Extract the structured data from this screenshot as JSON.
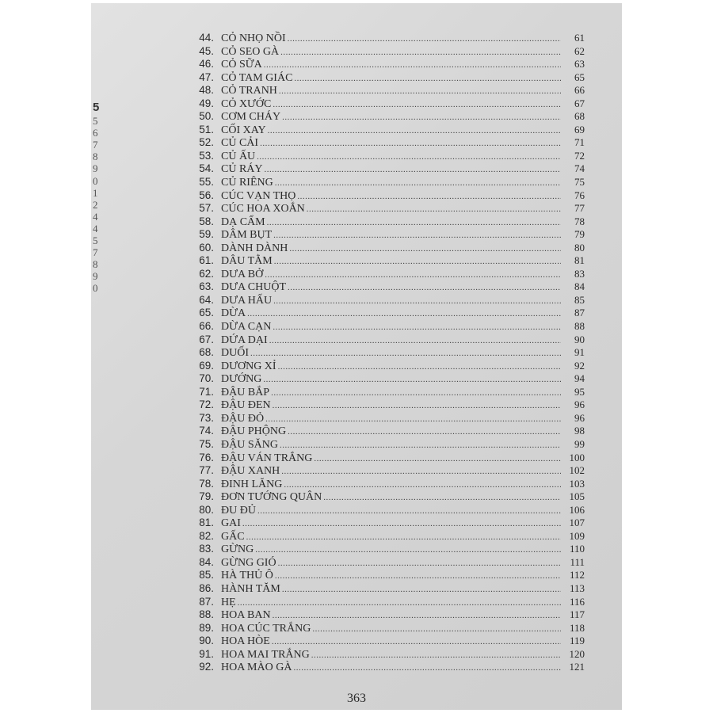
{
  "margin_fragments": [
    "5",
    "5",
    "6",
    "7",
    "8",
    "9",
    "0",
    "1",
    "2",
    "4",
    "4",
    "5",
    "7",
    "8",
    "9",
    "0"
  ],
  "entries": [
    {
      "n": "44.",
      "t": "CỎ NHỌ NỒI",
      "p": "61"
    },
    {
      "n": "45.",
      "t": "CỎ SEO GÀ",
      "p": "62"
    },
    {
      "n": "46.",
      "t": "CỎ SỮA",
      "p": "63"
    },
    {
      "n": "47.",
      "t": "CỎ TAM GIÁC",
      "p": "65"
    },
    {
      "n": "48.",
      "t": "CỎ TRANH",
      "p": "66"
    },
    {
      "n": "49.",
      "t": "CỎ XƯỚC",
      "p": "67"
    },
    {
      "n": "50.",
      "t": "CƠM CHÁY",
      "p": "68"
    },
    {
      "n": "51.",
      "t": "CỐI XAY",
      "p": "69"
    },
    {
      "n": "52.",
      "t": "CỦ CẢI",
      "p": "71"
    },
    {
      "n": "53.",
      "t": "CỦ ẤU",
      "p": "72"
    },
    {
      "n": "54.",
      "t": "CỦ RÁY",
      "p": "74"
    },
    {
      "n": "55.",
      "t": "CỦ RIÊNG",
      "p": "75"
    },
    {
      "n": "56.",
      "t": "CÚC VẠN THỌ",
      "p": "76"
    },
    {
      "n": "57.",
      "t": "CÚC HOA XOẮN",
      "p": "77"
    },
    {
      "n": "58.",
      "t": "DẠ CẨM",
      "p": "78"
    },
    {
      "n": "59.",
      "t": "DÂM BỤT",
      "p": "79"
    },
    {
      "n": "60.",
      "t": "DÀNH DÀNH",
      "p": "80"
    },
    {
      "n": "61.",
      "t": "DÂU TẰM",
      "p": "81"
    },
    {
      "n": "62.",
      "t": "DƯA BỞ",
      "p": "83"
    },
    {
      "n": "63.",
      "t": "DƯA CHUỘT",
      "p": "84"
    },
    {
      "n": "64.",
      "t": "DƯA HẤU",
      "p": "85"
    },
    {
      "n": "65.",
      "t": "DỪA",
      "p": "87"
    },
    {
      "n": "66.",
      "t": "DỪA CẠN",
      "p": "88"
    },
    {
      "n": "67.",
      "t": "DỨA DẠI",
      "p": "90"
    },
    {
      "n": "68.",
      "t": "DUỐI",
      "p": "91"
    },
    {
      "n": "69.",
      "t": "DƯƠNG XỈ",
      "p": "92"
    },
    {
      "n": "70.",
      "t": "DƯỚNG",
      "p": "94"
    },
    {
      "n": "71.",
      "t": "ĐẬU BẮP",
      "p": "95"
    },
    {
      "n": "72.",
      "t": "ĐẬU ĐEN",
      "p": "96"
    },
    {
      "n": "73.",
      "t": "ĐẬU ĐỎ",
      "p": "96"
    },
    {
      "n": "74.",
      "t": "ĐẬU PHỘNG",
      "p": "98"
    },
    {
      "n": "75.",
      "t": "ĐẬU SĂNG",
      "p": "99"
    },
    {
      "n": "76.",
      "t": "ĐẬU VÁN TRẮNG",
      "p": "100"
    },
    {
      "n": "77.",
      "t": "ĐẬU XANH",
      "p": "102"
    },
    {
      "n": "78.",
      "t": "ĐINH LĂNG",
      "p": "103"
    },
    {
      "n": "79.",
      "t": "ĐƠN TƯỚNG QUÂN",
      "p": "105"
    },
    {
      "n": "80.",
      "t": "ĐU ĐỦ",
      "p": "106"
    },
    {
      "n": "81.",
      "t": "GAI",
      "p": "107"
    },
    {
      "n": "82.",
      "t": "GẤC",
      "p": "109"
    },
    {
      "n": "83.",
      "t": "GỪNG",
      "p": "110"
    },
    {
      "n": "84.",
      "t": "GỪNG GIÓ",
      "p": "111"
    },
    {
      "n": "85.",
      "t": "HÀ THỦ Ô",
      "p": "112"
    },
    {
      "n": "86.",
      "t": "HÀNH TĂM",
      "p": "113"
    },
    {
      "n": "87.",
      "t": "HẸ",
      "p": "116"
    },
    {
      "n": "88.",
      "t": "HOA BAN",
      "p": "117"
    },
    {
      "n": "89.",
      "t": "HOA CÚC TRẮNG",
      "p": "118"
    },
    {
      "n": "90.",
      "t": "HOA HÒE",
      "p": "119"
    },
    {
      "n": "91.",
      "t": "HOA MAI TRẮNG",
      "p": "120"
    },
    {
      "n": "92.",
      "t": "HOA MÀO GÀ",
      "p": "121"
    }
  ],
  "page_number": "363"
}
